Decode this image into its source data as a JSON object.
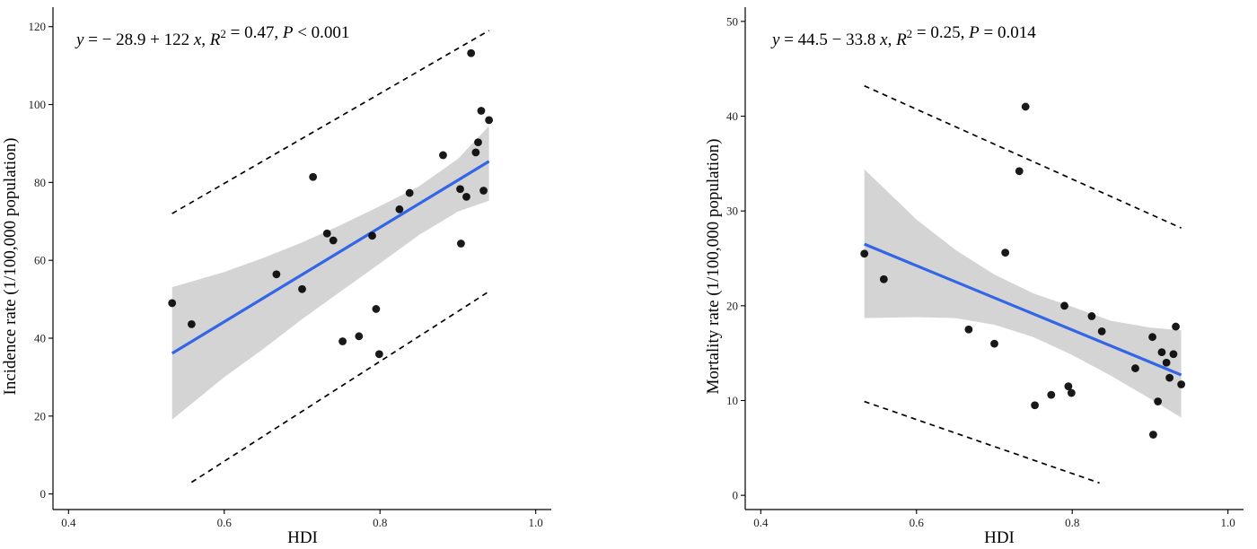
{
  "colors": {
    "fit_line": "#3366e6",
    "confidence_band": "#d4d4d4",
    "point": "#000000",
    "prediction_line": "#000000",
    "axis": "#000000"
  },
  "chart_data": [
    {
      "type": "scatter",
      "title": "",
      "xlabel": "HDI",
      "ylabel": "Incidence rate (1/100,000 population)",
      "xlim": [
        0.38,
        1.02
      ],
      "ylim": [
        -4,
        125
      ],
      "xticks": [
        0.4,
        0.6,
        0.8,
        1.0
      ],
      "xtick_labels": [
        "0.4",
        "0.6",
        "0.8",
        "1.0"
      ],
      "yticks": [
        0,
        20,
        40,
        60,
        80,
        100,
        120
      ],
      "ytick_labels": [
        "0",
        "20",
        "40",
        "60",
        "80",
        "100",
        "120"
      ],
      "grid": false,
      "annotation": {
        "parts": [
          {
            "t": "y",
            "i": true
          },
          {
            "t": " = − 28.9 + 122 ",
            "i": false
          },
          {
            "t": "x",
            "i": true
          },
          {
            "t": ", ",
            "i": false
          },
          {
            "t": "R",
            "i": true
          },
          {
            "t": "2",
            "i": false,
            "sup": true
          },
          {
            "t": " = 0.47, ",
            "i": false
          },
          {
            "t": "P",
            "i": true
          },
          {
            "t": " <  0.001",
            "i": false
          }
        ]
      },
      "points": [
        {
          "x": 0.533,
          "y": 49.0
        },
        {
          "x": 0.558,
          "y": 43.6
        },
        {
          "x": 0.667,
          "y": 56.4
        },
        {
          "x": 0.7,
          "y": 52.6
        },
        {
          "x": 0.714,
          "y": 81.4
        },
        {
          "x": 0.732,
          "y": 66.9
        },
        {
          "x": 0.74,
          "y": 65.1
        },
        {
          "x": 0.752,
          "y": 39.2
        },
        {
          "x": 0.773,
          "y": 40.5
        },
        {
          "x": 0.79,
          "y": 66.3
        },
        {
          "x": 0.795,
          "y": 47.5
        },
        {
          "x": 0.799,
          "y": 35.9
        },
        {
          "x": 0.825,
          "y": 73.1
        },
        {
          "x": 0.838,
          "y": 77.3
        },
        {
          "x": 0.881,
          "y": 87.0
        },
        {
          "x": 0.903,
          "y": 78.3
        },
        {
          "x": 0.904,
          "y": 64.3
        },
        {
          "x": 0.911,
          "y": 76.3
        },
        {
          "x": 0.917,
          "y": 113.2
        },
        {
          "x": 0.923,
          "y": 87.7
        },
        {
          "x": 0.926,
          "y": 90.3
        },
        {
          "x": 0.93,
          "y": 98.4
        },
        {
          "x": 0.933,
          "y": 77.9
        },
        {
          "x": 0.94,
          "y": 96.0
        }
      ],
      "fit_line": {
        "x": [
          0.533,
          0.94
        ],
        "y": [
          36.1,
          85.4
        ]
      },
      "confidence_band": {
        "x": [
          0.533,
          0.6,
          0.65,
          0.7,
          0.75,
          0.8,
          0.85,
          0.9,
          0.94
        ],
        "upper": [
          53.1,
          57.0,
          60.6,
          64.6,
          69.1,
          73.9,
          79.0,
          86.0,
          94.5
        ],
        "lower": [
          19.1,
          30.0,
          37.2,
          44.9,
          52.1,
          59.2,
          66.5,
          72.5,
          75.3
        ]
      },
      "prediction_upper": {
        "x": [
          0.533,
          0.94
        ],
        "y": [
          72.0,
          119.0
        ]
      },
      "prediction_lower": {
        "x": [
          0.558,
          0.94
        ],
        "y": [
          3.0,
          52.0
        ]
      }
    },
    {
      "type": "scatter",
      "title": "",
      "xlabel": "HDI",
      "ylabel": "Mortality rate (1/100,000 population)",
      "xlim": [
        0.38,
        1.02
      ],
      "ylim": [
        -1.5,
        51.5
      ],
      "xticks": [
        0.4,
        0.6,
        0.8,
        1.0
      ],
      "xtick_labels": [
        "0.4",
        "0.6",
        "0.8",
        "1.0"
      ],
      "yticks": [
        0,
        10,
        20,
        30,
        40,
        50
      ],
      "ytick_labels": [
        "0",
        "10",
        "20",
        "30",
        "40",
        "50"
      ],
      "grid": false,
      "annotation": {
        "parts": [
          {
            "t": "y",
            "i": true
          },
          {
            "t": " = 44.5 − 33.8 ",
            "i": false
          },
          {
            "t": "x",
            "i": true
          },
          {
            "t": ", ",
            "i": false
          },
          {
            "t": "R",
            "i": true
          },
          {
            "t": "2",
            "i": false,
            "sup": true
          },
          {
            "t": " = 0.25, ",
            "i": false
          },
          {
            "t": "P",
            "i": true
          },
          {
            "t": " = 0.014",
            "i": false
          }
        ]
      },
      "points": [
        {
          "x": 0.533,
          "y": 25.5
        },
        {
          "x": 0.558,
          "y": 22.8
        },
        {
          "x": 0.667,
          "y": 17.5
        },
        {
          "x": 0.7,
          "y": 16.0
        },
        {
          "x": 0.714,
          "y": 25.6
        },
        {
          "x": 0.732,
          "y": 34.2
        },
        {
          "x": 0.74,
          "y": 41.0
        },
        {
          "x": 0.752,
          "y": 9.5
        },
        {
          "x": 0.773,
          "y": 10.6
        },
        {
          "x": 0.79,
          "y": 20.0
        },
        {
          "x": 0.795,
          "y": 11.5
        },
        {
          "x": 0.799,
          "y": 10.8
        },
        {
          "x": 0.825,
          "y": 18.9
        },
        {
          "x": 0.838,
          "y": 17.3
        },
        {
          "x": 0.881,
          "y": 13.4
        },
        {
          "x": 0.903,
          "y": 16.7
        },
        {
          "x": 0.904,
          "y": 6.4
        },
        {
          "x": 0.91,
          "y": 9.9
        },
        {
          "x": 0.915,
          "y": 15.1
        },
        {
          "x": 0.921,
          "y": 14.0
        },
        {
          "x": 0.925,
          "y": 12.4
        },
        {
          "x": 0.93,
          "y": 14.9
        },
        {
          "x": 0.933,
          "y": 17.8
        },
        {
          "x": 0.94,
          "y": 11.7
        }
      ],
      "fit_line": {
        "x": [
          0.533,
          0.94
        ],
        "y": [
          26.5,
          12.7
        ]
      },
      "confidence_band": {
        "x": [
          0.533,
          0.6,
          0.65,
          0.7,
          0.75,
          0.8,
          0.85,
          0.9,
          0.94
        ],
        "upper": [
          34.4,
          29.1,
          25.9,
          23.3,
          21.3,
          19.9,
          18.4,
          17.7,
          17.4
        ],
        "lower": [
          18.7,
          18.8,
          18.7,
          18.0,
          16.7,
          14.8,
          12.6,
          10.2,
          8.2
        ]
      },
      "prediction_upper": {
        "x": [
          0.533,
          0.94
        ],
        "y": [
          43.2,
          28.2
        ]
      },
      "prediction_lower": {
        "x": [
          0.533,
          0.835
        ],
        "y": [
          9.9,
          1.3
        ]
      }
    }
  ]
}
